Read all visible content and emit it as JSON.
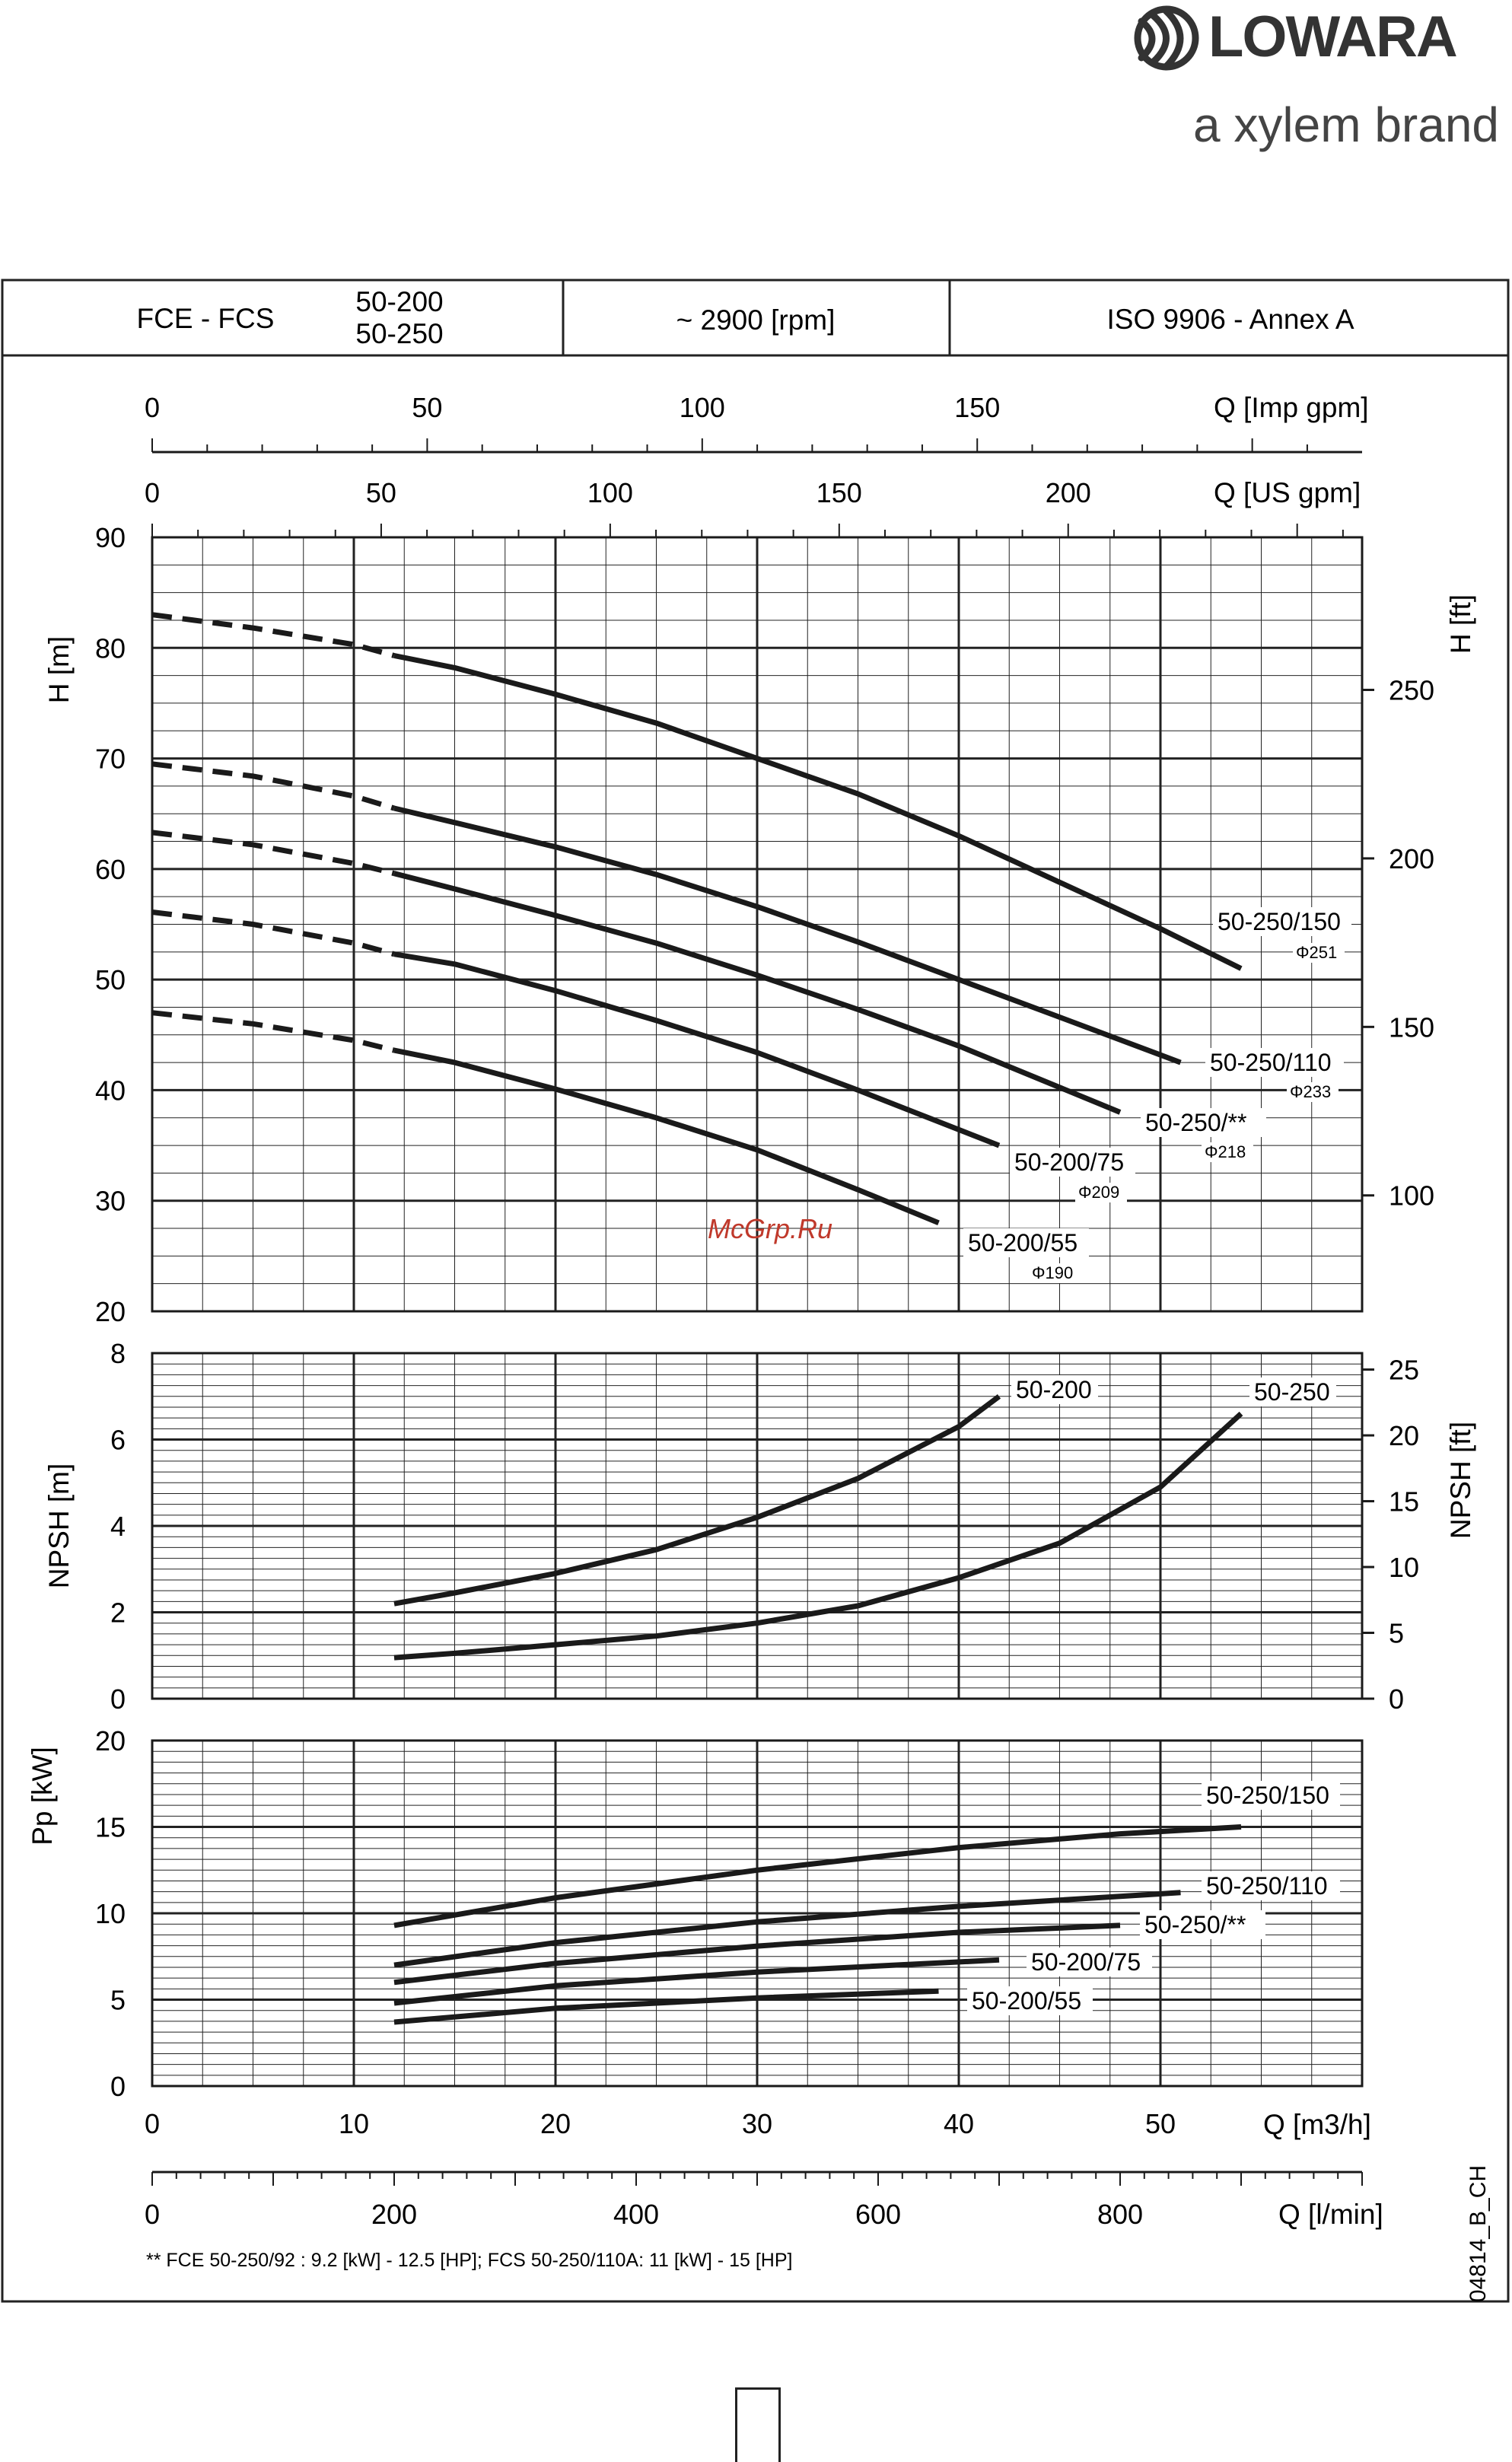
{
  "brand": {
    "name": "LOWARA",
    "tagline": "a xylem brand"
  },
  "header": {
    "model": "FCE - FCS",
    "sizes": [
      "50-200",
      "50-250"
    ],
    "speed": "~ 2900 [rpm]",
    "standard": "ISO 9906 - Annex A"
  },
  "watermark": "McGrp.Ru",
  "doc_code": "04814_B_CH",
  "footnote": "** FCE 50-250/92 : 9.2 [kW] - 12.5 [HP];     FCS 50-250/110A: 11 [kW] - 15  [HP]",
  "colors": {
    "ink": "#1a1a1a",
    "grid": "#222222",
    "watermark": "#c0392b",
    "brand_gray": "#444444"
  },
  "chart_data": [
    {
      "type": "line",
      "name": "head",
      "x_unit": "m3/h",
      "xlim": [
        0,
        60
      ],
      "ylim": [
        20,
        90
      ],
      "ylabel": "H [m]",
      "y2label": "H [ft]",
      "y_ticks": [
        20,
        30,
        40,
        50,
        60,
        70,
        80,
        90
      ],
      "y2_ticks": [
        100,
        150,
        200,
        250
      ],
      "top_axes": [
        {
          "label": "Q [Imp gpm]",
          "ticks": [
            0,
            50,
            100,
            150
          ]
        },
        {
          "label": "Q [US gpm]",
          "ticks": [
            0,
            50,
            100,
            150,
            200
          ]
        }
      ],
      "grid": true,
      "dashed_until_x": 12,
      "series": [
        {
          "name": "50-250/150",
          "diameter": "Φ251",
          "x": [
            0,
            5,
            10,
            12,
            15,
            20,
            25,
            30,
            35,
            40,
            45,
            50,
            54
          ],
          "y": [
            83,
            81.8,
            80.3,
            79.3,
            78.2,
            75.8,
            73.2,
            70,
            66.8,
            63,
            58.8,
            54.6,
            51
          ]
        },
        {
          "name": "50-250/110",
          "diameter": "Φ233",
          "x": [
            0,
            5,
            10,
            12,
            15,
            20,
            25,
            30,
            35,
            40,
            45,
            51
          ],
          "y": [
            69.5,
            68.4,
            66.6,
            65.5,
            64.2,
            62,
            59.5,
            56.6,
            53.4,
            50,
            46.6,
            42.5
          ]
        },
        {
          "name": "50-250/**",
          "diameter": "Φ218",
          "x": [
            0,
            5,
            10,
            12,
            15,
            20,
            25,
            30,
            35,
            40,
            48
          ],
          "y": [
            63.3,
            62.2,
            60.5,
            59.6,
            58.2,
            55.8,
            53.3,
            50.4,
            47.3,
            44,
            38
          ]
        },
        {
          "name": "50-200/75",
          "diameter": "Φ209",
          "x": [
            0,
            5,
            10,
            12,
            15,
            20,
            25,
            30,
            35,
            42
          ],
          "y": [
            56.1,
            55,
            53.3,
            52.3,
            51.4,
            49,
            46.3,
            43.4,
            40,
            35
          ]
        },
        {
          "name": "50-200/55",
          "diameter": "Φ190",
          "x": [
            0,
            5,
            10,
            12,
            15,
            20,
            25,
            30,
            35,
            39
          ],
          "y": [
            47,
            46,
            44.5,
            43.6,
            42.5,
            40.1,
            37.5,
            34.6,
            31,
            28
          ]
        }
      ]
    },
    {
      "type": "line",
      "name": "npsh",
      "x_unit": "m3/h",
      "xlim": [
        0,
        60
      ],
      "ylim": [
        0,
        8
      ],
      "ylabel": "NPSH [m]",
      "y2label": "NPSH [ft]",
      "y_ticks": [
        0,
        2,
        4,
        6,
        8
      ],
      "y2_ticks": [
        0,
        5,
        10,
        15,
        20,
        25
      ],
      "grid": true,
      "series": [
        {
          "name": "50-200",
          "x": [
            12,
            15,
            20,
            25,
            30,
            35,
            40,
            42
          ],
          "y": [
            2.2,
            2.45,
            2.9,
            3.45,
            4.2,
            5.1,
            6.3,
            7
          ]
        },
        {
          "name": "50-250",
          "x": [
            12,
            15,
            20,
            25,
            30,
            35,
            40,
            45,
            50,
            54
          ],
          "y": [
            0.95,
            1.05,
            1.25,
            1.45,
            1.75,
            2.15,
            2.8,
            3.6,
            4.9,
            6.6
          ]
        }
      ]
    },
    {
      "type": "line",
      "name": "power",
      "x_unit": "m3/h",
      "xlim": [
        0,
        60
      ],
      "ylim": [
        0,
        20
      ],
      "ylabel": "Pp [kW]",
      "y_ticks": [
        0,
        5,
        10,
        15,
        20
      ],
      "x_ticks": [
        0,
        10,
        20,
        30,
        40,
        50
      ],
      "xlabel": "Q [m3/h]",
      "bottom_axis": {
        "label": "Q [l/min]",
        "ticks": [
          0,
          200,
          400,
          600,
          800
        ]
      },
      "grid": true,
      "series": [
        {
          "name": "50-250/150",
          "x": [
            12,
            20,
            30,
            40,
            48,
            54
          ],
          "y": [
            9.3,
            10.9,
            12.5,
            13.8,
            14.6,
            15
          ]
        },
        {
          "name": "50-250/110",
          "x": [
            12,
            20,
            30,
            40,
            51
          ],
          "y": [
            7,
            8.3,
            9.5,
            10.4,
            11.2
          ]
        },
        {
          "name": "50-250/**",
          "x": [
            12,
            20,
            30,
            40,
            48
          ],
          "y": [
            6,
            7.1,
            8.1,
            8.9,
            9.3
          ]
        },
        {
          "name": "50-200/75",
          "x": [
            12,
            20,
            30,
            42
          ],
          "y": [
            4.8,
            5.8,
            6.6,
            7.3
          ]
        },
        {
          "name": "50-200/55",
          "x": [
            12,
            20,
            30,
            39
          ],
          "y": [
            3.7,
            4.5,
            5.1,
            5.5
          ]
        }
      ]
    }
  ]
}
